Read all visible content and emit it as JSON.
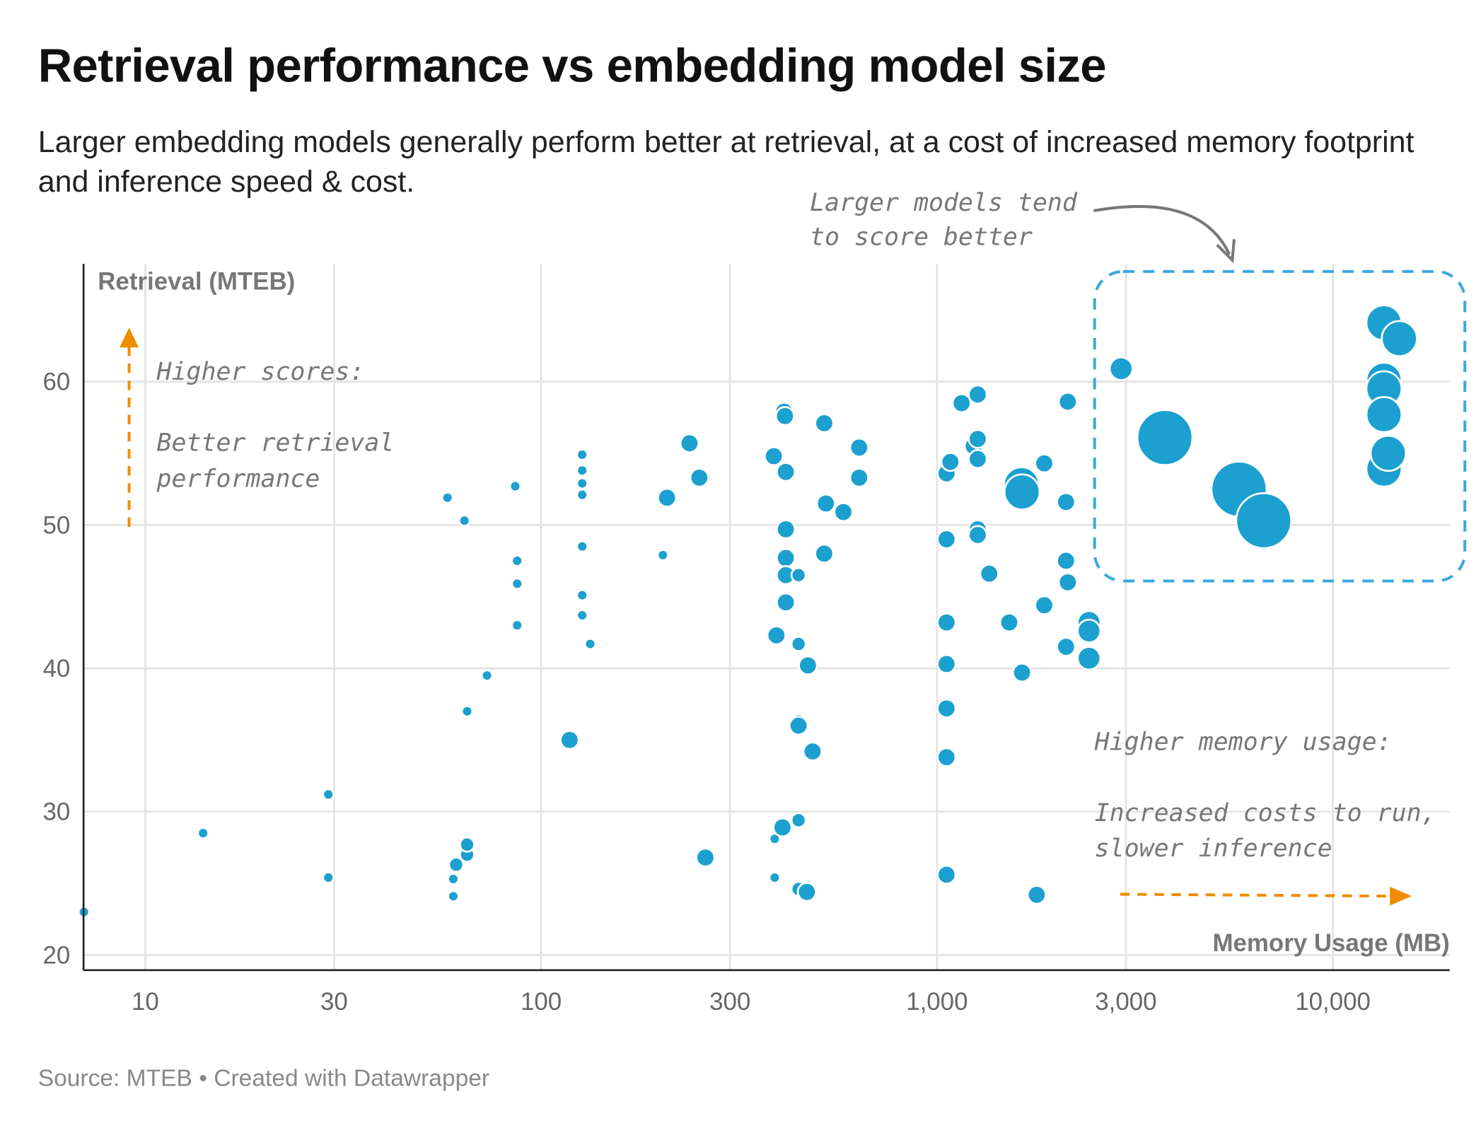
{
  "title": "Retrieval performance vs embedding model size",
  "subtitle": "Larger embedding models generally perform better at retrieval, at a cost of increased memory footprint and inference speed & cost.",
  "footer": "Source: MTEB • Created with Datawrapper",
  "colors": {
    "bubble": "#1ba0d0",
    "accent_arrow": "#f08c00",
    "highlight_box": "#3aa8e0",
    "annotation_text": "#777777"
  },
  "annotations": {
    "top_right": [
      "Larger models tend",
      "to score better"
    ],
    "left": [
      "Higher scores:",
      "Better retrieval",
      "performance"
    ],
    "bottom_right": [
      "Higher memory usage:",
      "Increased costs to run,",
      "slower inference"
    ]
  },
  "chart_data": {
    "type": "scatter",
    "xlabel": "Memory Usage (MB)",
    "ylabel": "Retrieval (MTEB)",
    "x_scale": "log",
    "xlim": [
      7,
      20000
    ],
    "ylim": [
      20,
      66
    ],
    "x_ticks": [
      10,
      30,
      100,
      300,
      1000,
      3000,
      10000
    ],
    "x_tick_labels": [
      "10",
      "30",
      "100",
      "300",
      "1,000",
      "3,000",
      "10,000"
    ],
    "y_ticks": [
      20,
      30,
      40,
      50,
      60
    ],
    "y_tick_labels": [
      "20",
      "30",
      "40",
      "50",
      "60"
    ],
    "grid": true,
    "points": [
      [
        7,
        23.0,
        1
      ],
      [
        14,
        28.5,
        1
      ],
      [
        29,
        31.2,
        1
      ],
      [
        29,
        25.4,
        1
      ],
      [
        58,
        51.9,
        1
      ],
      [
        64,
        50.3,
        1
      ],
      [
        60,
        25.3,
        1
      ],
      [
        60,
        24.1,
        1
      ],
      [
        61,
        26.3,
        2
      ],
      [
        65,
        27.0,
        2
      ],
      [
        65,
        27.7,
        2
      ],
      [
        65,
        37.0,
        1
      ],
      [
        73,
        39.5,
        1
      ],
      [
        86,
        52.7,
        1
      ],
      [
        87,
        47.5,
        1
      ],
      [
        87,
        45.9,
        1
      ],
      [
        87,
        43.0,
        1
      ],
      [
        118,
        35.0,
        3
      ],
      [
        127,
        54.9,
        1
      ],
      [
        127,
        53.8,
        1
      ],
      [
        127,
        52.9,
        1
      ],
      [
        127,
        52.1,
        1
      ],
      [
        127,
        48.5,
        1
      ],
      [
        127,
        45.1,
        1
      ],
      [
        127,
        43.7,
        1
      ],
      [
        133,
        41.7,
        1
      ],
      [
        203,
        47.9,
        1
      ],
      [
        208,
        51.9,
        3
      ],
      [
        237,
        55.7,
        3
      ],
      [
        251,
        53.3,
        3
      ],
      [
        260,
        26.8,
        3
      ],
      [
        387,
        54.8,
        3
      ],
      [
        389,
        25.4,
        1
      ],
      [
        389,
        28.1,
        1
      ],
      [
        393,
        42.3,
        3
      ],
      [
        411,
        57.9,
        3
      ],
      [
        413,
        57.6,
        3
      ],
      [
        415,
        53.7,
        3
      ],
      [
        415,
        49.7,
        3
      ],
      [
        415,
        47.7,
        3
      ],
      [
        415,
        46.5,
        3
      ],
      [
        415,
        44.6,
        3
      ],
      [
        407,
        28.9,
        3
      ],
      [
        447,
        46.5,
        2
      ],
      [
        447,
        41.7,
        2
      ],
      [
        447,
        36.3,
        2
      ],
      [
        447,
        36.0,
        3
      ],
      [
        447,
        29.4,
        2
      ],
      [
        447,
        24.6,
        2
      ],
      [
        469,
        24.4,
        3
      ],
      [
        472,
        40.2,
        3
      ],
      [
        485,
        34.2,
        3
      ],
      [
        519,
        57.1,
        3
      ],
      [
        519,
        48.0,
        3
      ],
      [
        524,
        51.5,
        3
      ],
      [
        580,
        50.9,
        3
      ],
      [
        636,
        55.4,
        3
      ],
      [
        636,
        53.3,
        3
      ],
      [
        1057,
        25.6,
        3
      ],
      [
        1057,
        33.8,
        3
      ],
      [
        1057,
        37.2,
        3
      ],
      [
        1057,
        40.3,
        3
      ],
      [
        1057,
        43.2,
        3
      ],
      [
        1057,
        49.0,
        3
      ],
      [
        1057,
        53.6,
        3
      ],
      [
        1081,
        54.4,
        3
      ],
      [
        1154,
        58.5,
        3
      ],
      [
        1267,
        59.1,
        3
      ],
      [
        1238,
        55.5,
        3
      ],
      [
        1267,
        56.0,
        3
      ],
      [
        1267,
        54.6,
        3
      ],
      [
        1267,
        49.7,
        3
      ],
      [
        1267,
        49.3,
        3
      ],
      [
        1355,
        46.6,
        3
      ],
      [
        1522,
        43.2,
        3
      ],
      [
        1634,
        52.8,
        5
      ],
      [
        1640,
        52.3,
        5
      ],
      [
        1640,
        39.7,
        3
      ],
      [
        1786,
        24.2,
        3
      ],
      [
        1866,
        44.4,
        3
      ],
      [
        1866,
        54.3,
        3
      ],
      [
        2118,
        51.6,
        3
      ],
      [
        2118,
        41.5,
        3
      ],
      [
        2140,
        58.6,
        3
      ],
      [
        2118,
        47.5,
        3
      ],
      [
        2140,
        46.0,
        3
      ],
      [
        2421,
        43.2,
        4
      ],
      [
        2421,
        42.6,
        4
      ],
      [
        2421,
        40.7,
        4
      ],
      [
        2918,
        60.9,
        4
      ],
      [
        3764,
        56.1,
        6
      ],
      [
        5793,
        52.5,
        6
      ],
      [
        6688,
        50.3,
        6
      ],
      [
        13460,
        64.1,
        5
      ],
      [
        14720,
        63.0,
        5
      ],
      [
        13460,
        60.1,
        5
      ],
      [
        13460,
        59.5,
        5
      ],
      [
        13460,
        57.7,
        5
      ],
      [
        13460,
        53.9,
        5
      ],
      [
        13800,
        55.0,
        5
      ]
    ]
  }
}
